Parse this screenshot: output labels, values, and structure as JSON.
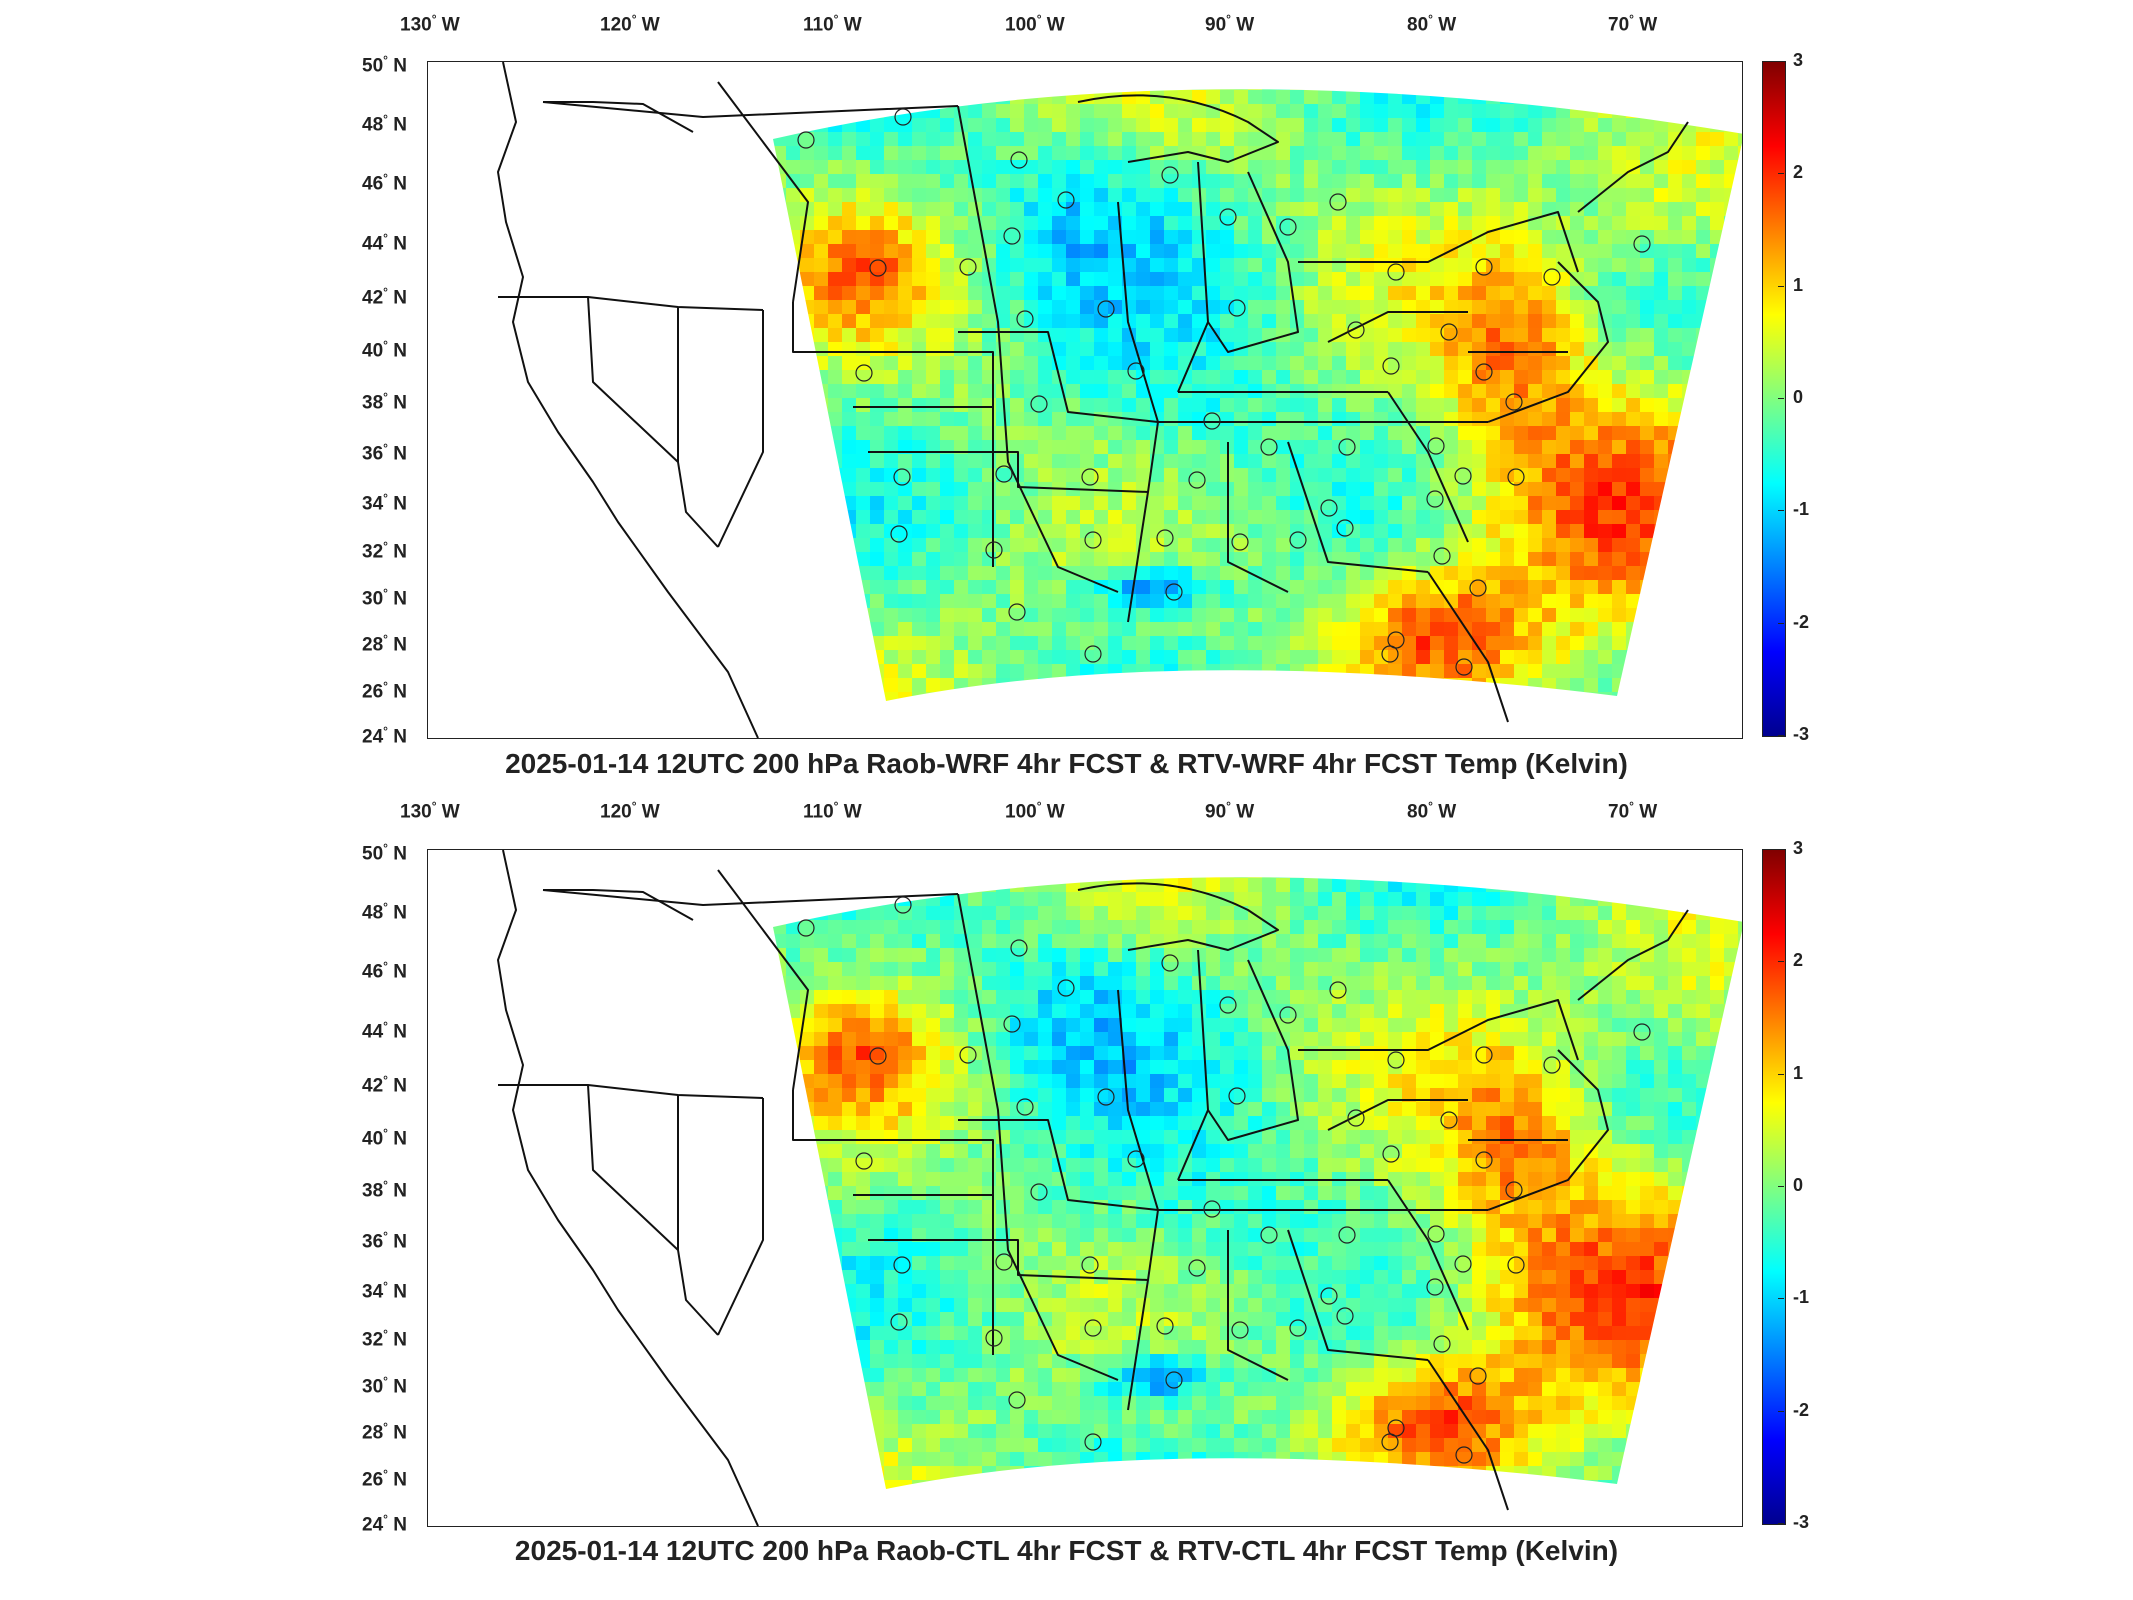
{
  "panels": [
    {
      "title": "2025-01-14 12UTC 200 hPa Raob-WRF 4hr FCST & RTV-WRF 4hr FCST Temp (Kelvin)"
    },
    {
      "title": "2025-01-14 12UTC 200 hPa Raob-CTL 4hr FCST & RTV-CTL 4hr FCST Temp (Kelvin)"
    }
  ],
  "lon_labels": [
    {
      "deg": "130",
      "dir": "W"
    },
    {
      "deg": "120",
      "dir": "W"
    },
    {
      "deg": "110",
      "dir": "W"
    },
    {
      "deg": "100",
      "dir": "W"
    },
    {
      "deg": "90",
      "dir": "W"
    },
    {
      "deg": "80",
      "dir": "W"
    },
    {
      "deg": "70",
      "dir": "W"
    }
  ],
  "lat_labels": [
    {
      "deg": "50",
      "dir": "N"
    },
    {
      "deg": "48",
      "dir": "N"
    },
    {
      "deg": "46",
      "dir": "N"
    },
    {
      "deg": "44",
      "dir": "N"
    },
    {
      "deg": "42",
      "dir": "N"
    },
    {
      "deg": "40",
      "dir": "N"
    },
    {
      "deg": "38",
      "dir": "N"
    },
    {
      "deg": "36",
      "dir": "N"
    },
    {
      "deg": "34",
      "dir": "N"
    },
    {
      "deg": "32",
      "dir": "N"
    },
    {
      "deg": "30",
      "dir": "N"
    },
    {
      "deg": "28",
      "dir": "N"
    },
    {
      "deg": "26",
      "dir": "N"
    },
    {
      "deg": "24",
      "dir": "N"
    }
  ],
  "colorbar": {
    "ticks": [
      "3",
      "2",
      "1",
      "0",
      "-1",
      "-2",
      "-3"
    ],
    "colors": [
      "#00008f",
      "#0000ff",
      "#0080ff",
      "#00ffff",
      "#80ff80",
      "#ffff00",
      "#ff8000",
      "#ff0000",
      "#800000"
    ]
  }
}
